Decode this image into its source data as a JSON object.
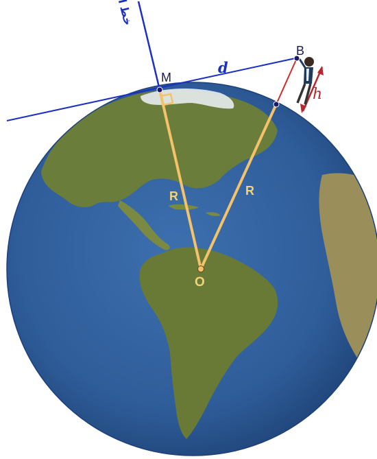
{
  "labels": {
    "point_m": "M",
    "point_b": "B",
    "point_o": "O",
    "distance_d": "d",
    "height_h": "h",
    "radius_left": "R",
    "radius_right": "R",
    "horizon_line": "خط الأفق"
  },
  "colors": {
    "ocean": "#2f5d9a",
    "land": "#6b7d3a",
    "line_blue": "#1c2fc4",
    "radius": "#f3c26b",
    "height_red": "#d22a2a"
  }
}
